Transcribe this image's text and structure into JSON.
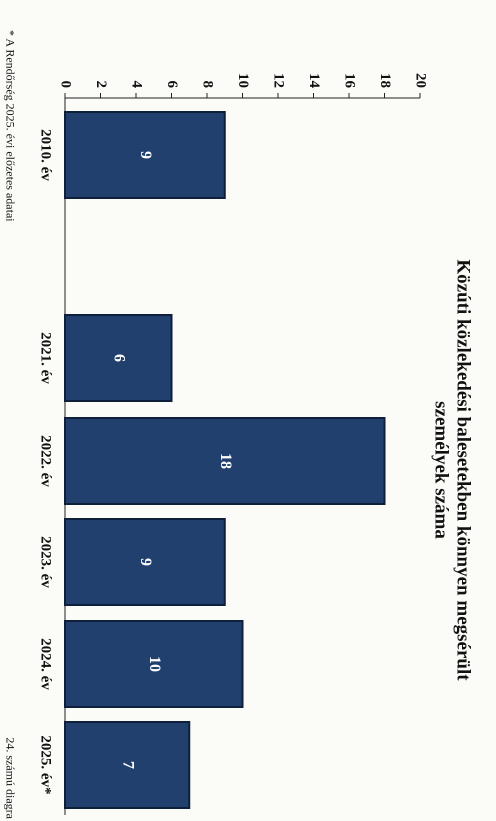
{
  "chart_data": {
    "type": "bar",
    "title": "Közúti közlekedési balesetekben könnyen megsérült",
    "subtitle": "személyek száma",
    "categories": [
      "2010. év",
      "2021. év",
      "2022. év",
      "2023. év",
      "2024. év",
      "2025. év*"
    ],
    "values": [
      9,
      6,
      18,
      9,
      10,
      7
    ],
    "color": "#22406e",
    "ylim": [
      0,
      20
    ],
    "yticks": [
      0,
      2,
      4,
      6,
      8,
      10,
      12,
      14,
      16,
      18,
      20
    ],
    "grid": false,
    "footnote": "* A Rendőrség 2025. évi előzetes adatai",
    "caption": "24. számú diagra"
  }
}
